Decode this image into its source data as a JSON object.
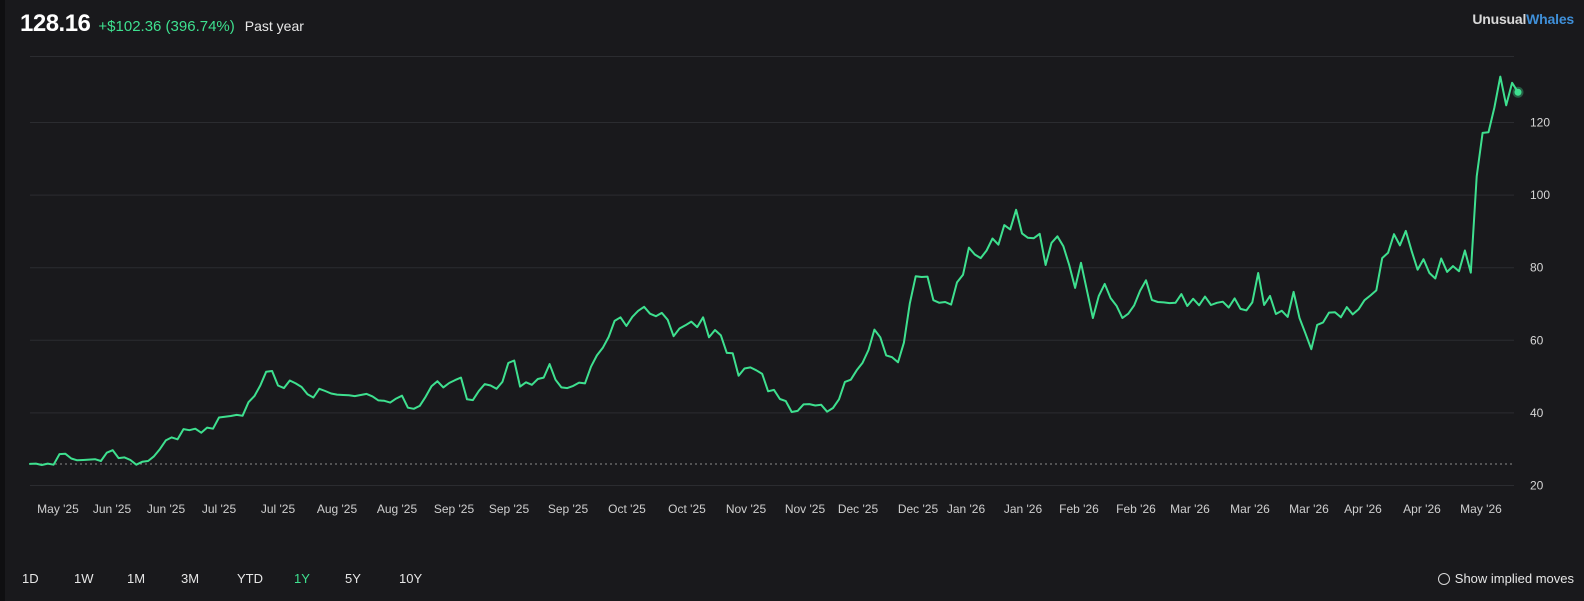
{
  "header": {
    "price": "128.16",
    "change": "+$102.36 (396.74%)",
    "period": "Past year"
  },
  "brand": {
    "word1": "Unusual",
    "word2": "Whales"
  },
  "colors": {
    "background": "#19191c",
    "line": "#3ee08f",
    "grid": "#2b2c30",
    "baseline": "#8a8a8a",
    "brand_accent": "#3f8fd8"
  },
  "ranges": [
    {
      "label": "1D",
      "active": false
    },
    {
      "label": "1W",
      "active": false
    },
    {
      "label": "1M",
      "active": false
    },
    {
      "label": "3M",
      "active": false
    },
    {
      "label": "YTD",
      "active": false
    },
    {
      "label": "1Y",
      "active": true
    },
    {
      "label": "5Y",
      "active": false
    },
    {
      "label": "10Y",
      "active": false
    }
  ],
  "implied_moves": {
    "label": "Show implied moves",
    "checked": false
  },
  "chart_data": {
    "type": "line",
    "baseline_value": 25.8,
    "ylim": [
      20,
      138
    ],
    "y_ticks": [
      20,
      40,
      60,
      80,
      100,
      120
    ],
    "grid": true,
    "x_tick_labels": [
      "May '25",
      "Jun '25",
      "Jun '25",
      "Jul '25",
      "Jul '25",
      "Aug '25",
      "Aug '25",
      "Sep '25",
      "Sep '25",
      "Sep '25",
      "Oct '25",
      "Oct '25",
      "Nov '25",
      "Nov '25",
      "Dec '25",
      "Dec '25",
      "Jan '26",
      "Jan '26",
      "Feb '26",
      "Feb '26",
      "Mar '26",
      "Mar '26",
      "Mar '26",
      "Apr '26",
      "Apr '26",
      "May '26"
    ],
    "series": [
      {
        "values": [
          25.8,
          25.9,
          25.5,
          25.9,
          25.6,
          28.5,
          28.6,
          27.3,
          26.8,
          26.9,
          27.0,
          27.1,
          26.6,
          28.9,
          29.6,
          27.4,
          27.6,
          26.9,
          25.6,
          26.4,
          26.6,
          27.9,
          29.9,
          32.3,
          33.1,
          32.6,
          35.4,
          35.1,
          35.5,
          34.4,
          35.8,
          35.5,
          38.6,
          38.8,
          39.0,
          39.3,
          39.1,
          42.8,
          44.5,
          47.4,
          51.2,
          51.4,
          47.4,
          46.7,
          48.8,
          48.0,
          47.0,
          45.0,
          44.1,
          46.5,
          45.9,
          45.2,
          44.9,
          44.8,
          44.7,
          44.5,
          44.8,
          45.1,
          44.4,
          43.3,
          43.2,
          42.7,
          43.8,
          44.6,
          41.3,
          41.0,
          41.8,
          44.3,
          47.2,
          48.6,
          46.9,
          48.1,
          48.9,
          49.6,
          43.6,
          43.4,
          45.9,
          47.8,
          47.4,
          46.5,
          48.4,
          53.6,
          54.3,
          47.1,
          48.3,
          47.6,
          49.2,
          49.6,
          53.3,
          49.0,
          46.9,
          46.7,
          47.3,
          48.2,
          48.0,
          52.6,
          55.7,
          57.8,
          60.8,
          65.2,
          66.2,
          63.8,
          66.3,
          68.0,
          69.1,
          67.2,
          66.5,
          67.4,
          65.5,
          61.0,
          63.1,
          64.0,
          65.0,
          63.5,
          66.2,
          60.7,
          62.7,
          61.2,
          56.4,
          56.3,
          50.1,
          52.1,
          52.4,
          51.6,
          50.6,
          45.8,
          46.2,
          43.7,
          43.1,
          40.1,
          40.4,
          42.2,
          42.3,
          41.9,
          42.1,
          40.2,
          41.2,
          43.6,
          48.4,
          49.0,
          51.6,
          53.7,
          57.2,
          62.8,
          60.7,
          55.7,
          55.2,
          53.8,
          59.2,
          70.0,
          77.5,
          77.3,
          77.4,
          70.9,
          70.2,
          70.4,
          69.7,
          75.8,
          77.9,
          85.4,
          83.5,
          82.5,
          84.6,
          87.9,
          86.2,
          91.6,
          90.4,
          95.8,
          89.3,
          88.1,
          88.0,
          89.2,
          80.6,
          86.7,
          88.5,
          85.8,
          80.6,
          74.3,
          81.2,
          73.5,
          66.0,
          72.1,
          75.4,
          71.5,
          69.4,
          66.0,
          67.2,
          69.5,
          73.5,
          76.4,
          71.0,
          70.4,
          70.3,
          70.1,
          70.2,
          72.6,
          69.3,
          71.3,
          69.5,
          71.9,
          69.6,
          70.2,
          70.5,
          68.9,
          71.4,
          68.5,
          68.1,
          70.3,
          78.4,
          69.6,
          72.1,
          67.1,
          68.0,
          66.3,
          73.2,
          66.0,
          61.8,
          57.4,
          64.1,
          64.8,
          67.5,
          67.6,
          66.2,
          69.0,
          67.0,
          68.4,
          70.9,
          72.2,
          73.6,
          82.5,
          84.0,
          89.1,
          86.0,
          90.0,
          84.4,
          79.3,
          82.2,
          78.4,
          76.9,
          82.4,
          78.7,
          80.3,
          78.9,
          84.6,
          78.5,
          105.0,
          117.0,
          117.2,
          124.0,
          132.5,
          124.6,
          130.8,
          128.2
        ]
      }
    ]
  }
}
